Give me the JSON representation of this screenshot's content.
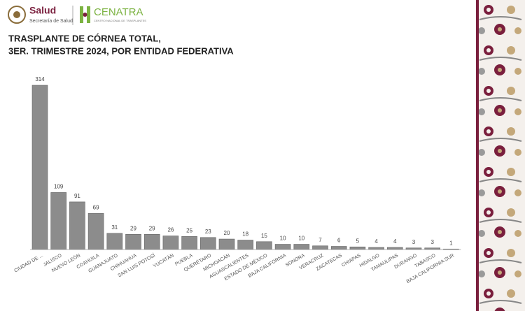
{
  "header": {
    "salud": "Salud",
    "salud_sub": "Secretaría de Salud",
    "cenatra": "CENATRA",
    "cenatra_sub": "CENTRO NACIONAL DE TRASPLANTES"
  },
  "chart_data": {
    "type": "bar",
    "title": [
      "TRASPLANTE DE CÓRNEA TOTAL,",
      "3ER. TRIMESTRE 2024, POR ENTIDAD FEDERATIVA"
    ],
    "categories": [
      "CIUDAD DE ...",
      "JALISCO",
      "NUEVO LEÓN",
      "COAHUILA",
      "GUANAJUATO",
      "CHIHUAHUA",
      "SAN LUIS POTOSÍ",
      "YUCATÁN",
      "PUEBLA",
      "QUERÉTARO",
      "MICHOACÁN",
      "AGUASCALIENTES",
      "ESTADO DE MÉXICO",
      "BAJA CALIFORNIA",
      "SONORA",
      "VERACRUZ",
      "ZACATECAS",
      "CHIAPAS",
      "HIDALGO",
      "TAMAULIPAS",
      "DURANGO",
      "TABASCO",
      "BAJA CALIFORNIA SUR"
    ],
    "values": [
      314,
      109,
      91,
      69,
      31,
      29,
      29,
      26,
      25,
      23,
      20,
      18,
      15,
      10,
      10,
      7,
      6,
      5,
      4,
      4,
      3,
      3,
      1
    ],
    "color": "#8c8c8c"
  }
}
